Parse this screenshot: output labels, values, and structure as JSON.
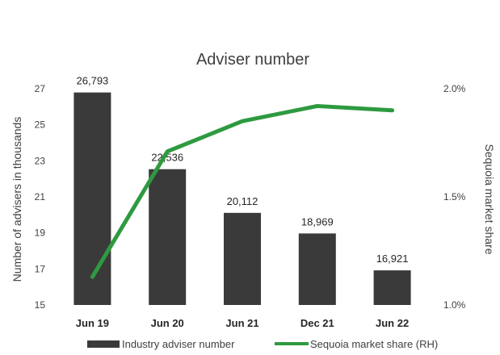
{
  "chart_data": {
    "type": "bar+line",
    "title": "Adviser number",
    "categories": [
      "Jun 19",
      "Jun 20",
      "Jun 21",
      "Dec 21",
      "Jun 22"
    ],
    "series": [
      {
        "name": "Industry adviser number",
        "type": "bar",
        "axis": "left",
        "values": [
          26.793,
          22.536,
          20.112,
          18.969,
          16.921
        ],
        "labels": [
          "26,793",
          "22,536",
          "20,112",
          "18,969",
          "16,921"
        ],
        "color": "#3a3a3a"
      },
      {
        "name": "Sequoia market share (RH)",
        "type": "line",
        "axis": "right",
        "values": [
          1.13,
          1.71,
          1.85,
          1.92,
          1.9
        ],
        "color": "#2e9a3f"
      }
    ],
    "ylabel": "Number of advisers in thousands",
    "y2label": "Sequoia market share",
    "ylim": [
      15,
      27
    ],
    "yticks": [
      "15",
      "17",
      "19",
      "21",
      "23",
      "25",
      "27"
    ],
    "y2lim": [
      1.0,
      2.0
    ],
    "y2ticks": [
      "1.0%",
      "1.5%",
      "2.0%"
    ],
    "grid": false,
    "legend": "bottom"
  }
}
